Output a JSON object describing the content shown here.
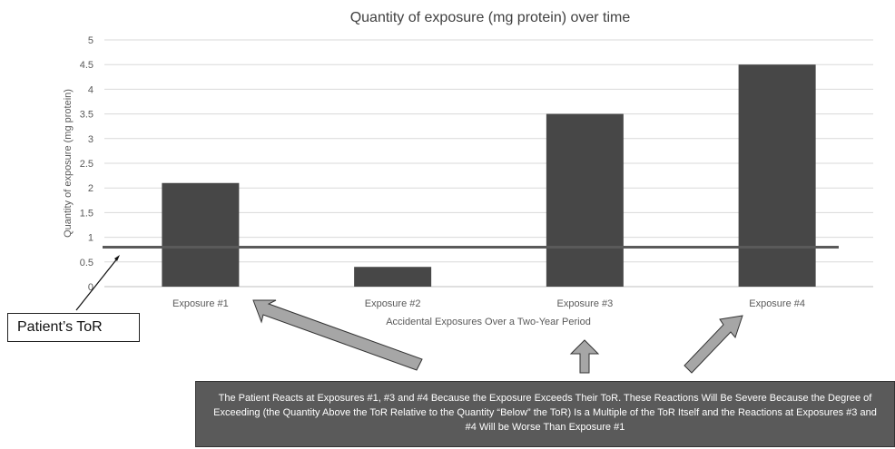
{
  "chart_data": {
    "type": "bar",
    "title": "Quantity of exposure (mg protein) over time",
    "xlabel": "Accidental Exposures Over a Two-Year Period",
    "ylabel": "Quantity of exposure (mg protein)",
    "categories": [
      "Exposure #1",
      "Exposure #2",
      "Exposure #3",
      "Exposure #4"
    ],
    "values": [
      2.1,
      0.4,
      3.5,
      4.5
    ],
    "ylim": [
      0,
      5
    ],
    "yticks": [
      "0",
      "0.5",
      "1",
      "1.5",
      "2",
      "2.5",
      "3",
      "3.5",
      "4",
      "4.5",
      "5"
    ],
    "grid": true,
    "threshold": {
      "value": 0.8
    },
    "colors": {
      "bar": "#474747",
      "threshold": "#5a5a5a",
      "grid": "#d9d9d9",
      "axis_text": "#595959",
      "arrow": "#a6a6a6"
    }
  },
  "annotations": {
    "tor_label": "Patient’s ToR",
    "note": "The Patient Reacts at Exposures #1, #3 and #4 Because the Exposure Exceeds Their ToR. These Reactions Will Be Severe Because the Degree of Exceeding (the Quantity Above the ToR Relative to the Quantity “Below” the ToR) Is a Multiple of the ToR Itself and the Reactions at Exposures #3 and #4 Will be Worse Than Exposure #1"
  }
}
